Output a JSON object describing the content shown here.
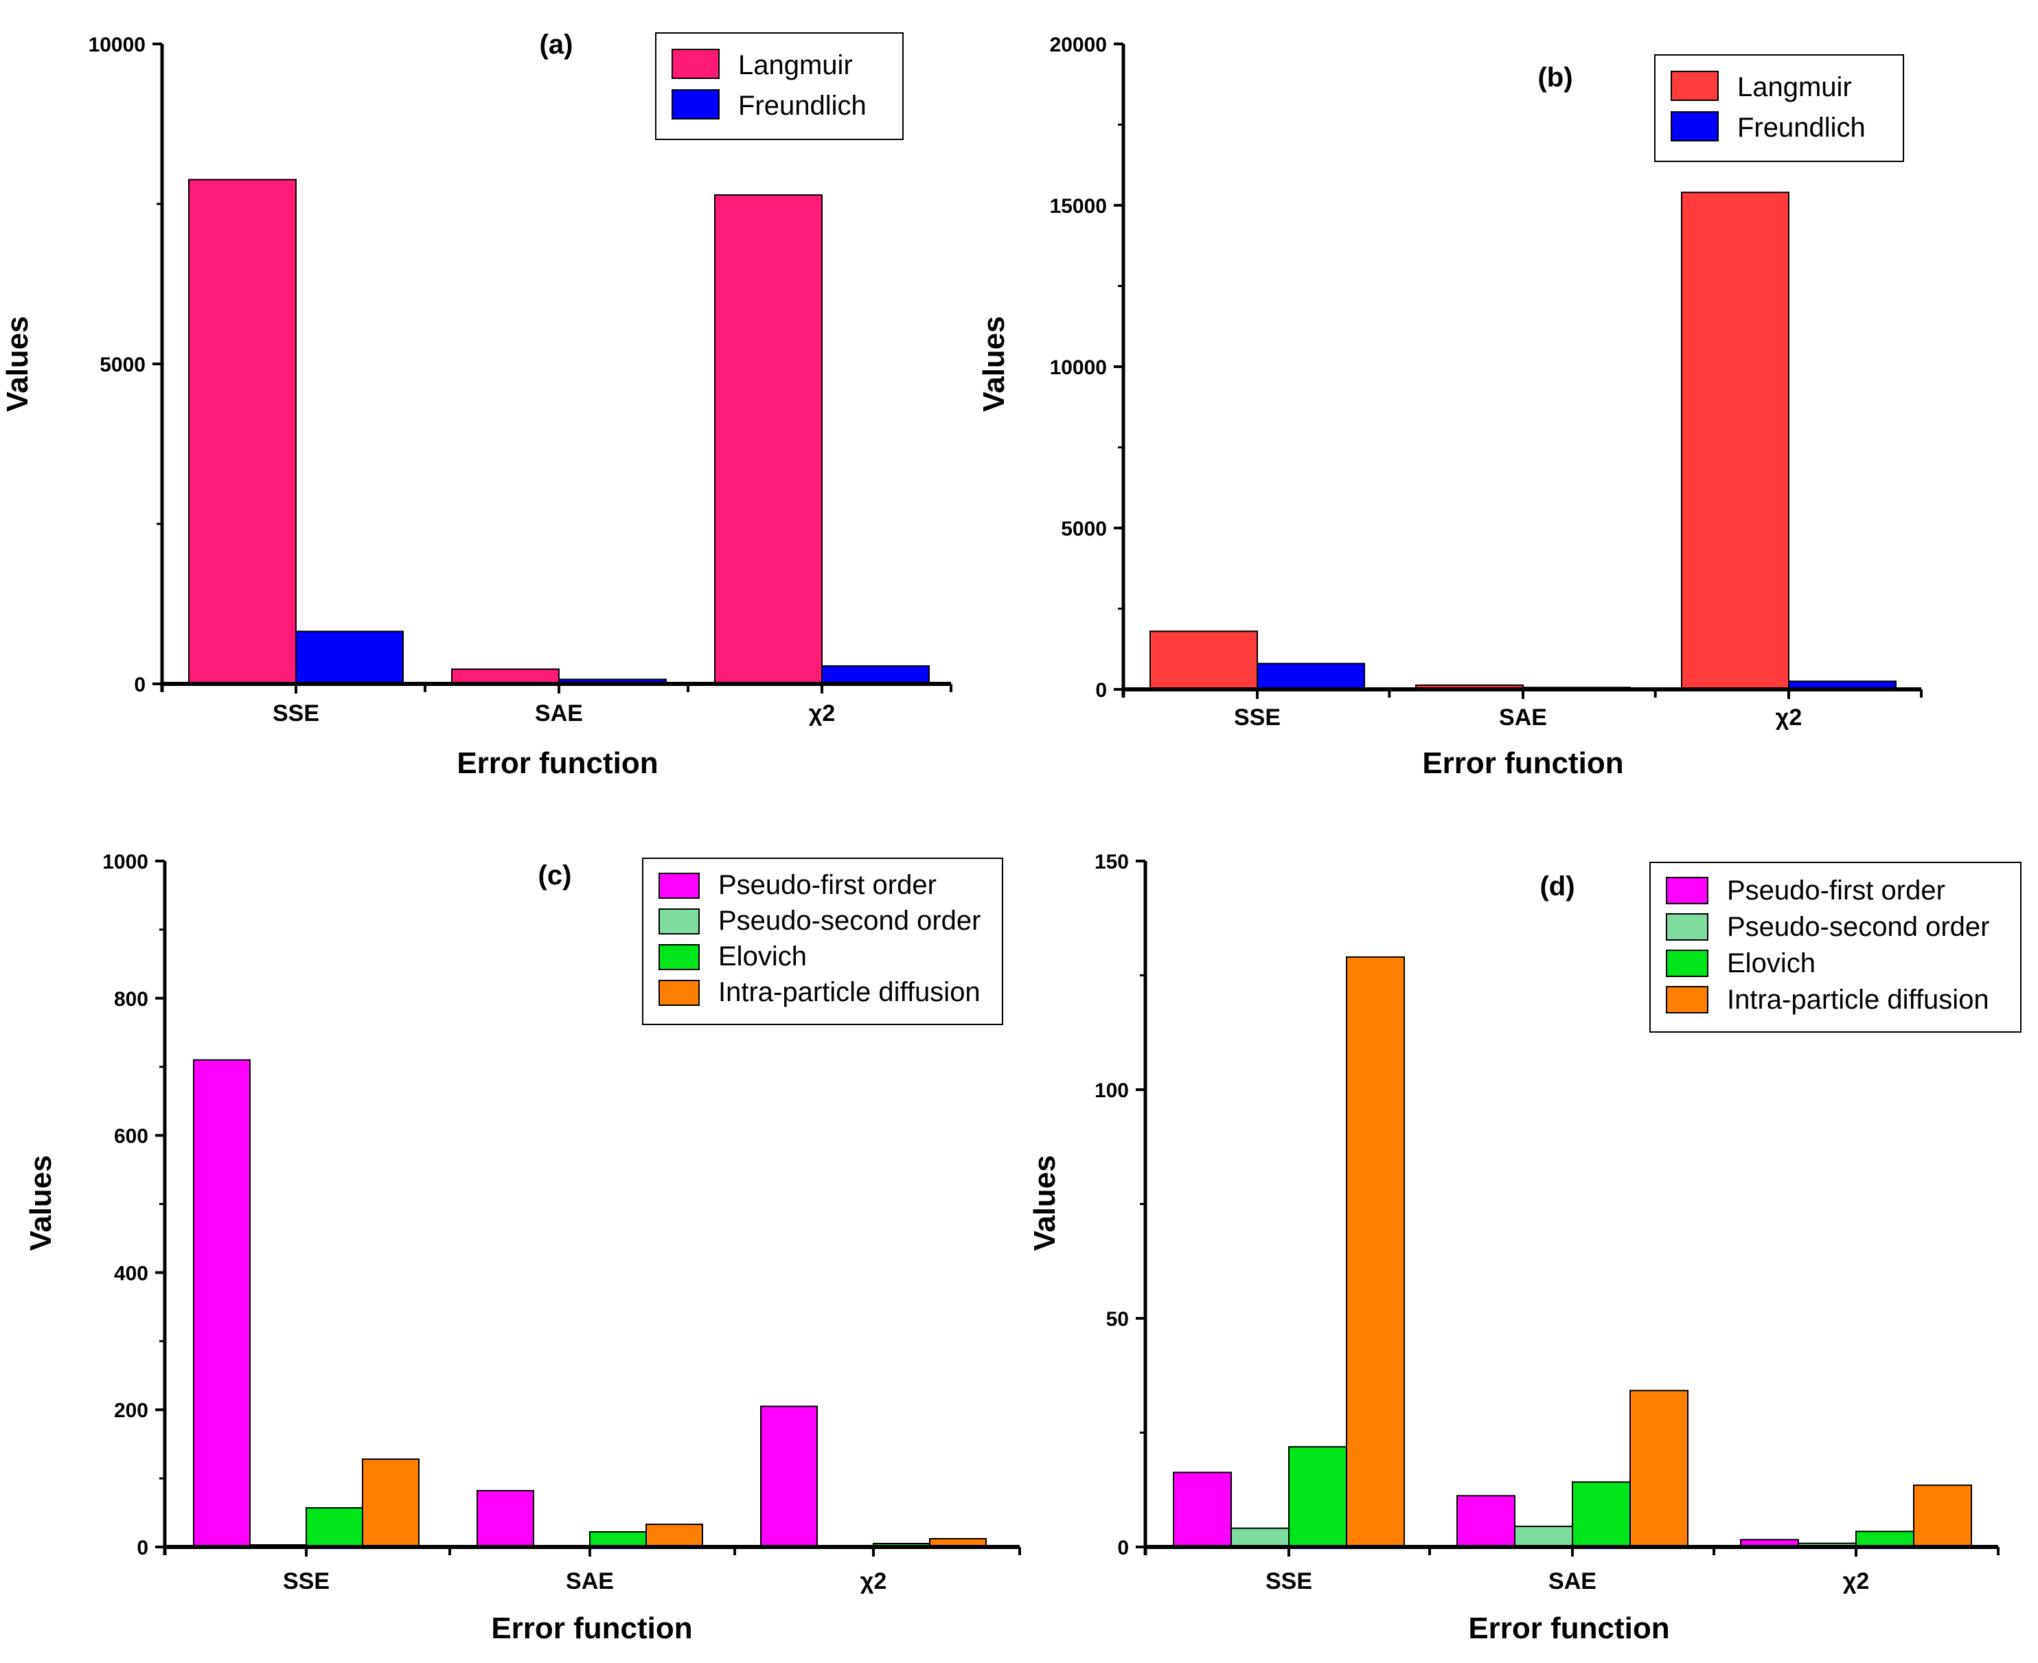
{
  "chart_data": [
    {
      "type": "bar",
      "title": "(a)",
      "xlabel": "Error function",
      "ylabel": "Values",
      "categories": [
        "SSE",
        "SAE",
        "χ2"
      ],
      "ylim": [
        0,
        10000
      ],
      "yticks": [
        0,
        5000,
        10000
      ],
      "legend_position": "top-right",
      "series": [
        {
          "name": "Langmuir",
          "color": "#ff1a75",
          "values": [
            7880,
            230,
            7640
          ]
        },
        {
          "name": "Freundlich",
          "color": "#0000ff",
          "values": [
            820,
            70,
            280
          ]
        }
      ]
    },
    {
      "type": "bar",
      "title": "(b)",
      "xlabel": "Error function",
      "ylabel": "Values",
      "categories": [
        "SSE",
        "SAE",
        "χ2"
      ],
      "ylim": [
        0,
        20000
      ],
      "yticks": [
        0,
        5000,
        10000,
        15000,
        20000
      ],
      "legend_position": "top-right",
      "series": [
        {
          "name": "Langmuir",
          "color": "#ff3b3b",
          "values": [
            1800,
            130,
            15400
          ]
        },
        {
          "name": "Freundlich",
          "color": "#0000ff",
          "values": [
            800,
            60,
            250
          ]
        }
      ]
    },
    {
      "type": "bar",
      "title": "(c)",
      "xlabel": "Error function",
      "ylabel": "Values",
      "categories": [
        "SSE",
        "SAE",
        "χ2"
      ],
      "ylim": [
        0,
        1000
      ],
      "yticks": [
        0,
        200,
        400,
        600,
        800,
        1000
      ],
      "legend_position": "top-right",
      "series": [
        {
          "name": "Pseudo-first order",
          "color": "#ff00ff",
          "values": [
            710,
            82,
            205
          ]
        },
        {
          "name": "Pseudo-second order",
          "color": "#7fdc9f",
          "values": [
            3,
            2,
            1
          ]
        },
        {
          "name": "Elovich",
          "color": "#00e61a",
          "values": [
            57,
            22,
            5
          ]
        },
        {
          "name": "Intra-particle diffusion",
          "color": "#ff8000",
          "values": [
            128,
            33,
            12
          ]
        }
      ]
    },
    {
      "type": "bar",
      "title": "(d)",
      "xlabel": "Error function",
      "ylabel": "Values",
      "categories": [
        "SSE",
        "SAE",
        "χ2"
      ],
      "ylim": [
        0,
        150
      ],
      "yticks": [
        0,
        50,
        100,
        150
      ],
      "legend_position": "top-right",
      "series": [
        {
          "name": "Pseudo-first order",
          "color": "#ff00ff",
          "values": [
            16.3,
            11.2,
            1.6
          ]
        },
        {
          "name": "Pseudo-second order",
          "color": "#7fdc9f",
          "values": [
            4.1,
            4.5,
            0.8
          ]
        },
        {
          "name": "Elovich",
          "color": "#00e61a",
          "values": [
            21.9,
            14.2,
            3.4
          ]
        },
        {
          "name": "Intra-particle diffusion",
          "color": "#ff8000",
          "values": [
            129,
            34.2,
            13.5
          ]
        }
      ]
    }
  ]
}
